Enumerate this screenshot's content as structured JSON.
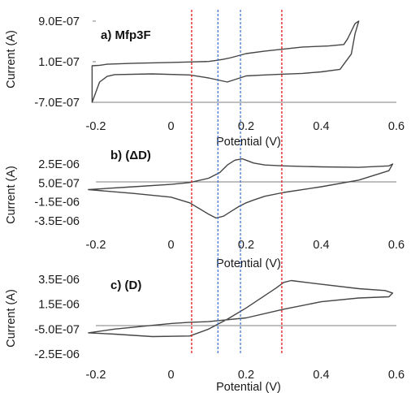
{
  "colors": {
    "curve": "#454545",
    "axis": "#7f7f7f",
    "red_guide": "#e8171b",
    "blue_guide": "#3a6fd6"
  },
  "chart_data": [
    {
      "type": "line",
      "title": "a) Mfp3F",
      "xlabel": "Potential (V)",
      "ylabel": "Current (A)",
      "xlim": [
        -0.2,
        0.6
      ],
      "xticks": [
        -0.2,
        0,
        0.2,
        0.4,
        0.6
      ],
      "xtick_labels": [
        "-0.2",
        "0",
        "0.2",
        "0.4",
        "0.6"
      ],
      "ylim": [
        -7e-07,
        9e-07
      ],
      "yticks": [
        9e-07,
        1e-07,
        -7e-07
      ],
      "ytick_labels": [
        "9.0E-07",
        "1.0E-07",
        "-7.0E-07"
      ],
      "grid": false,
      "series": [
        {
          "x": [
            -0.21,
            -0.2,
            -0.19,
            -0.17,
            -0.15,
            -0.05,
            0.05,
            0.1,
            0.15,
            0.2,
            0.25,
            0.3,
            0.35,
            0.4,
            0.45,
            0.48,
            0.49,
            0.5,
            0.49,
            0.48,
            0.47,
            0.46,
            0.42,
            0.35,
            0.3,
            0.25,
            0.2,
            0.18,
            0.16,
            0.14,
            0.12,
            0.1,
            0.05,
            0.0,
            -0.1,
            -0.17,
            -0.19,
            -0.21
          ],
          "y": [
            -7e-07,
            -5e-07,
            -3e-07,
            -1.9e-07,
            -1.55e-07,
            -1.4e-07,
            -1.6e-07,
            -2.2e-07,
            -3e-07,
            -1.8e-07,
            -1.6e-07,
            -1.45e-07,
            -1.3e-07,
            -1e-07,
            -5e-08,
            2.5e-07,
            6.5e-07,
            9e-07,
            8.5e-07,
            7e-07,
            5.5e-07,
            4.4e-07,
            4.1e-07,
            3.9e-07,
            3.5e-07,
            3.1e-07,
            2.6e-07,
            2.2e-07,
            1.8e-07,
            1.5e-07,
            1.25e-07,
            1.05e-07,
            9.5e-08,
            8.5e-08,
            7e-08,
            5e-08,
            3e-08,
            2e-08
          ]
        }
      ]
    },
    {
      "type": "line",
      "title": "b) (ΔD)",
      "xlabel": "Potential (V)",
      "ylabel": "Current (A)",
      "xlim": [
        -0.2,
        0.6
      ],
      "xticks": [
        -0.2,
        0,
        0.2,
        0.4,
        0.6
      ],
      "xtick_labels": [
        "-0.2",
        "0",
        "0.2",
        "0.4",
        "0.6"
      ],
      "ylim": [
        -3.5e-06,
        2.5e-06
      ],
      "yticks": [
        2.5e-06,
        5e-07,
        -1.5e-06,
        -3.5e-06
      ],
      "ytick_labels": [
        "2.5E-06",
        "5.0E-07",
        "-1.5E-06",
        "-3.5E-06"
      ],
      "grid": false,
      "series": [
        {
          "x": [
            -0.22,
            -0.1,
            0.0,
            0.05,
            0.1,
            0.13,
            0.15,
            0.17,
            0.19,
            0.2,
            0.22,
            0.25,
            0.3,
            0.4,
            0.5,
            0.58,
            0.59,
            0.58,
            0.5,
            0.4,
            0.3,
            0.25,
            0.22,
            0.2,
            0.18,
            0.16,
            0.14,
            0.12,
            0.1,
            0.05,
            0.0,
            -0.1,
            -0.22
          ],
          "y": [
            -2e-07,
            1e-07,
            3.5e-07,
            5.5e-07,
            1e-06,
            1.6e-06,
            2.4e-06,
            2.9e-06,
            3.05e-06,
            2.9e-06,
            2.6e-06,
            2.4e-06,
            2.3e-06,
            2.2e-06,
            2.15e-06,
            2.3e-06,
            2.5e-06,
            1.8e-06,
            8e-07,
            1e-07,
            -5e-07,
            -9e-07,
            -1.3e-06,
            -1.6e-06,
            -2e-06,
            -2.5e-06,
            -3e-06,
            -3.2e-06,
            -2.8e-06,
            -1.6e-06,
            -1e-06,
            -6e-07,
            -2e-07
          ]
        }
      ]
    },
    {
      "type": "line",
      "title": "c) (D)",
      "xlabel": "Potential (V)",
      "ylabel": "Current (A)",
      "xlim": [
        -0.2,
        0.6
      ],
      "xticks": [
        -0.2,
        0,
        0.2,
        0.4,
        0.6
      ],
      "xtick_labels": [
        "-0.2",
        "0",
        "0.2",
        "0.4",
        "0.6"
      ],
      "ylim": [
        -2.5e-06,
        3.5e-06
      ],
      "yticks": [
        3.5e-06,
        1.5e-06,
        -5e-07,
        -2.5e-06
      ],
      "ytick_labels": [
        "3.5E-06",
        "1.5E-06",
        "-5.0E-07",
        "-2.5E-06"
      ],
      "grid": false,
      "series": [
        {
          "x": [
            -0.22,
            -0.15,
            -0.05,
            0.05,
            0.1,
            0.15,
            0.2,
            0.25,
            0.28,
            0.3,
            0.32,
            0.4,
            0.5,
            0.57,
            0.59,
            0.58,
            0.5,
            0.4,
            0.3,
            0.2,
            0.1,
            0.05,
            0.0,
            -0.05,
            -0.15,
            -0.22
          ],
          "y": [
            -8e-07,
            -9e-07,
            -1.1e-06,
            -1.05e-06,
            -5e-07,
            3e-07,
            1.2e-06,
            2.2e-06,
            2.8e-06,
            3.25e-06,
            3.4e-06,
            3.1e-06,
            2.75e-06,
            2.6e-06,
            2.4e-06,
            2.1e-06,
            2e-06,
            1.7e-06,
            1.1e-06,
            4e-07,
            1e-07,
            5e-08,
            -5e-08,
            -2e-07,
            -5e-07,
            -8e-07
          ]
        }
      ]
    }
  ],
  "guides": {
    "red_x": [
      0.055,
      0.295
    ],
    "blue_x": [
      0.125,
      0.185
    ]
  }
}
